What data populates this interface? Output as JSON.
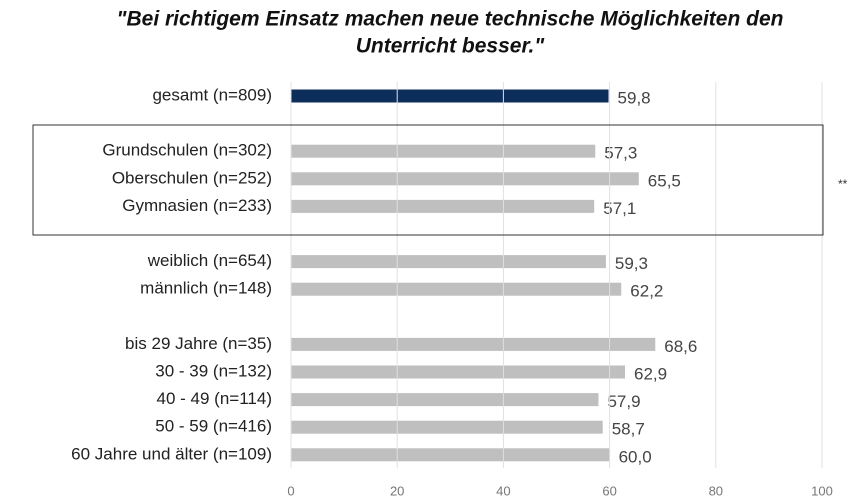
{
  "chart_data": {
    "type": "hbar",
    "title": [
      "\"Bei richtigem Einsatz machen neue technische Möglichkeiten den",
      "Unterricht besser.\""
    ],
    "categories": [
      "gesamt (n=809)",
      null,
      "Grundschulen (n=302)",
      "Oberschulen (n=252)",
      "Gymnasien (n=233)",
      null,
      "weiblich (n=654)",
      "männlich (n=148)",
      null,
      "bis 29 Jahre (n=35)",
      "30 - 39 (n=132)",
      "40 - 49 (n=114)",
      "50 - 59 (n=416)",
      "60 Jahre und älter (n=109)"
    ],
    "values": [
      59.8,
      null,
      57.3,
      65.5,
      57.1,
      null,
      59.3,
      62.2,
      null,
      68.6,
      62.9,
      57.9,
      58.7,
      60.0
    ],
    "value_labels": [
      "59,8",
      null,
      "57,3",
      "65,5",
      "57,1",
      null,
      "59,3",
      "62,2",
      null,
      "68,6",
      "62,9",
      "57,9",
      "58,7",
      "60,0"
    ],
    "colors": [
      "#0d2d5a",
      null,
      "#bfbfbf",
      "#bfbfbf",
      "#bfbfbf",
      null,
      "#bfbfbf",
      "#bfbfbf",
      null,
      "#bfbfbf",
      "#bfbfbf",
      "#bfbfbf",
      "#bfbfbf",
      "#bfbfbf"
    ],
    "annotation": "**",
    "xlim": [
      0,
      100
    ],
    "xticks": [
      0,
      20,
      40,
      60,
      80,
      100
    ],
    "grid": true
  }
}
